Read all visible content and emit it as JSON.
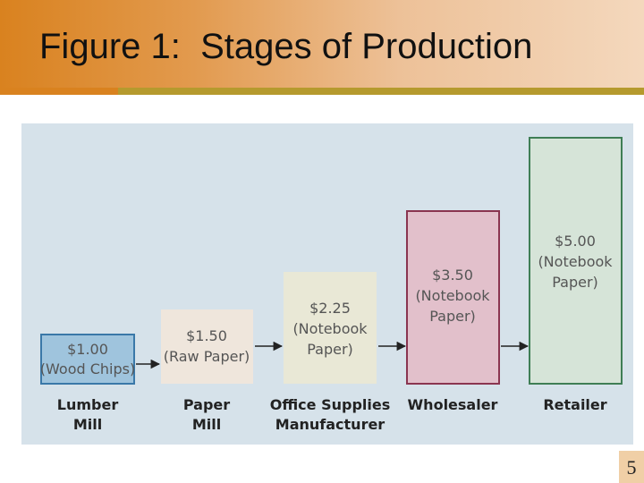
{
  "slide": {
    "title": "Figure 1:  Stages of Production",
    "page_number": "5"
  },
  "colors": {
    "lumber_mill": "#9fc4dd",
    "paper_mill": "#efe6dc",
    "office_supplies": "#e9e8d6",
    "wholesaler": "#e2c0cb",
    "retailer": "#d6e4d8"
  },
  "stages": [
    {
      "price": "$1.00",
      "product": "(Wood Chips)",
      "label_line1": "Lumber",
      "label_line2": "Mill"
    },
    {
      "price": "$1.50",
      "product": "(Raw Paper)",
      "label_line1": "Paper",
      "label_line2": "Mill"
    },
    {
      "price": "$2.25",
      "product_line1": "(Notebook",
      "product_line2": "Paper)",
      "label_line1": "Office Supplies",
      "label_line2": "Manufacturer"
    },
    {
      "price": "$3.50",
      "product_line1": "(Notebook",
      "product_line2": "Paper)",
      "label_line1": "Wholesaler"
    },
    {
      "price": "$5.00",
      "product_line1": "(Notebook",
      "product_line2": "Paper)",
      "label_line1": "Retailer"
    }
  ]
}
